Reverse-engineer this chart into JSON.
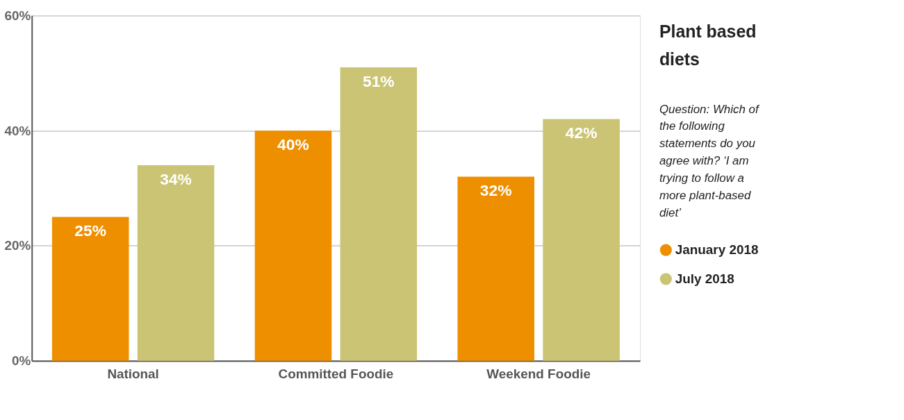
{
  "chart_data": {
    "type": "bar",
    "title": "Plant based diets",
    "subtitle": "Question: Which of the following statements do you agree with? ‘I am trying to follow a more plant-based diet’",
    "categories": [
      "National",
      "Committed Foodie",
      "Weekend Foodie"
    ],
    "series": [
      {
        "name": "January 2018",
        "color": "#ee8f00",
        "values": [
          25,
          40,
          32
        ],
        "value_labels": [
          "25%",
          "40%",
          "32%"
        ]
      },
      {
        "name": "July 2018",
        "color": "#cbc474",
        "values": [
          34,
          51,
          42
        ],
        "value_labels": [
          "34%",
          "51%",
          "42%"
        ]
      }
    ],
    "ylim": [
      0,
      60
    ],
    "yticks": [
      {
        "value": 0,
        "label": "0%"
      },
      {
        "value": 20,
        "label": "20%"
      },
      {
        "value": 40,
        "label": "40%"
      },
      {
        "value": 60,
        "label": "60%"
      }
    ],
    "grid": "y",
    "legend": "right"
  }
}
